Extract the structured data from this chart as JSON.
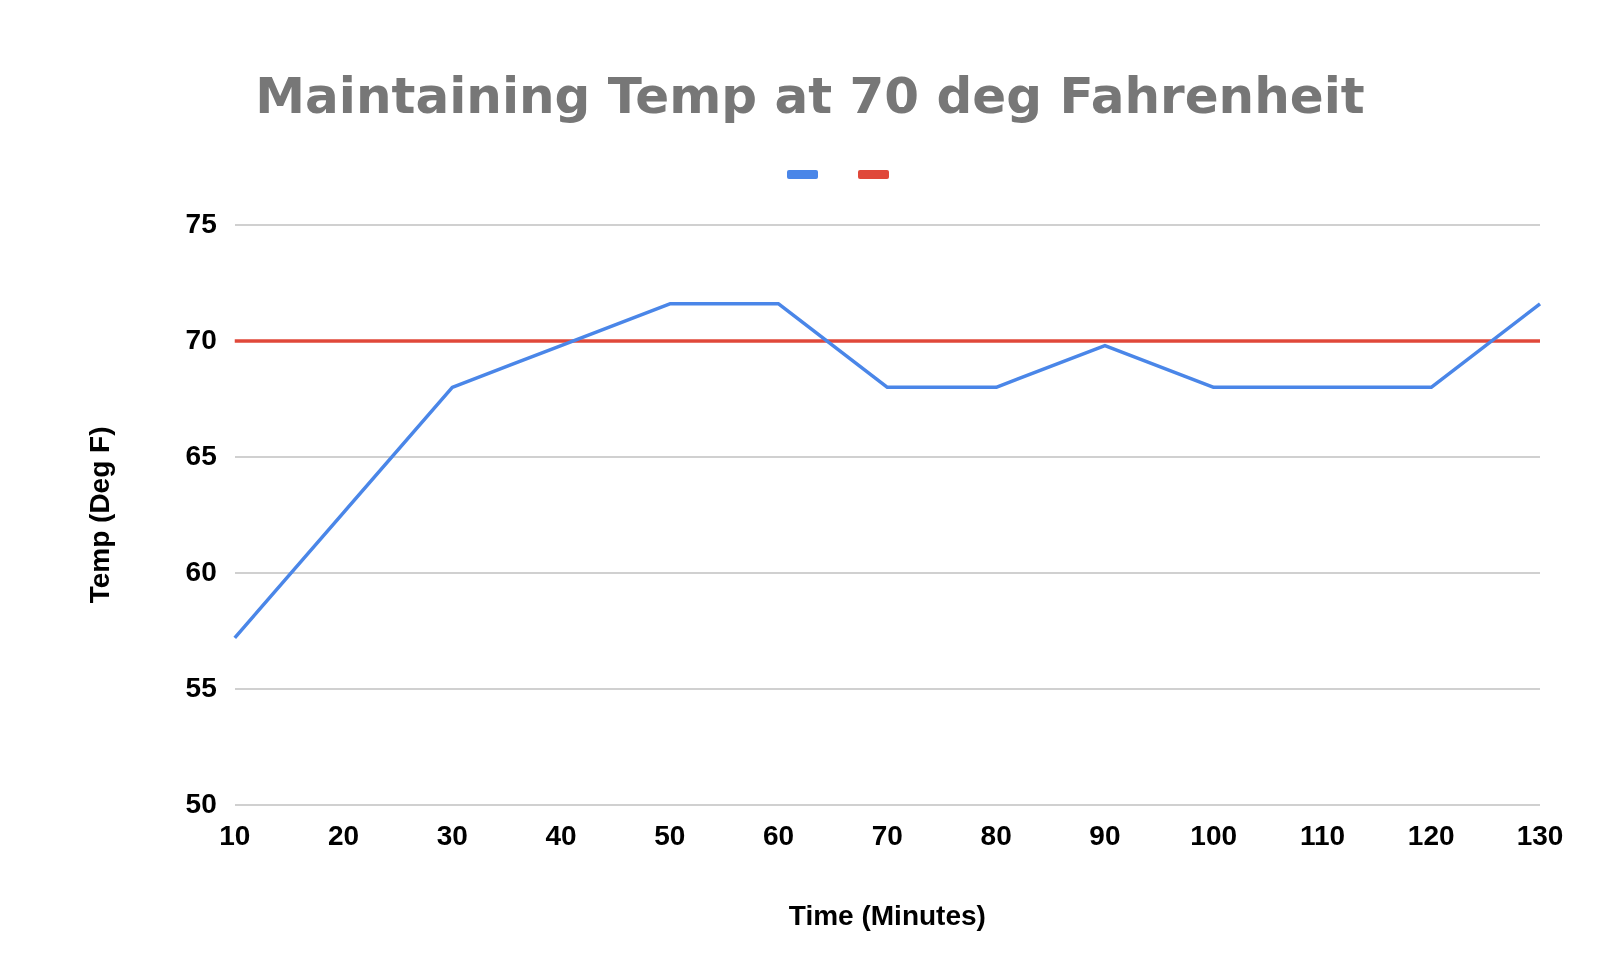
{
  "chart_data": {
    "type": "line",
    "title": "Maintaining Temp at 70 deg Fahrenheit",
    "xlabel": "Time (Minutes)",
    "ylabel": "Temp (Deg F)",
    "categories": [
      "10",
      "20",
      "30",
      "40",
      "50",
      "60",
      "70",
      "80",
      "90",
      "100",
      "110",
      "120",
      "130"
    ],
    "series": [
      {
        "color": "#4a86e8",
        "values": [
          57.2,
          62.6,
          68,
          69.8,
          71.6,
          71.6,
          68,
          68,
          69.8,
          68,
          68,
          68,
          71.6
        ]
      },
      {
        "color": "#e0483a",
        "values": [
          70,
          70,
          70,
          70,
          70,
          70,
          70,
          70,
          70,
          70,
          70,
          70,
          70
        ]
      }
    ],
    "ylim": [
      50,
      75
    ],
    "yticks": [
      50,
      55,
      60,
      65,
      70,
      75
    ],
    "grid": "y",
    "marker": "none"
  }
}
